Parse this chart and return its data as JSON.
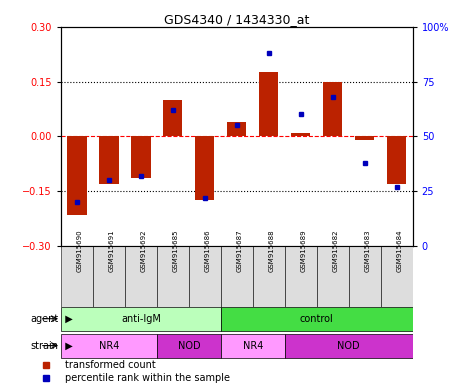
{
  "title": "GDS4340 / 1434330_at",
  "samples": [
    "GSM915690",
    "GSM915691",
    "GSM915692",
    "GSM915685",
    "GSM915686",
    "GSM915687",
    "GSM915688",
    "GSM915689",
    "GSM915682",
    "GSM915683",
    "GSM915684"
  ],
  "red_values": [
    -0.215,
    -0.13,
    -0.115,
    0.1,
    -0.175,
    0.04,
    0.175,
    0.01,
    0.15,
    -0.01,
    -0.13
  ],
  "blue_values": [
    20,
    30,
    32,
    62,
    22,
    55,
    88,
    60,
    68,
    38,
    27
  ],
  "ylim_left": [
    -0.3,
    0.3
  ],
  "ylim_right": [
    0,
    100
  ],
  "yticks_left": [
    -0.3,
    -0.15,
    0,
    0.15,
    0.3
  ],
  "yticks_right": [
    0,
    25,
    50,
    75,
    100
  ],
  "ytick_labels_right": [
    "0",
    "25",
    "50",
    "75",
    "100%"
  ],
  "hlines_dotted": [
    0.15,
    -0.15
  ],
  "bar_color": "#BB2200",
  "dot_color": "#0000BB",
  "agent_groups": [
    {
      "label": "anti-IgM",
      "start": 0,
      "end": 5,
      "color": "#BBFFBB"
    },
    {
      "label": "control",
      "start": 5,
      "end": 11,
      "color": "#44DD44"
    }
  ],
  "strain_groups": [
    {
      "label": "NR4",
      "start": 0,
      "end": 3,
      "color": "#FF99FF"
    },
    {
      "label": "NOD",
      "start": 3,
      "end": 5,
      "color": "#CC33CC"
    },
    {
      "label": "NR4",
      "start": 5,
      "end": 7,
      "color": "#FF99FF"
    },
    {
      "label": "NOD",
      "start": 7,
      "end": 11,
      "color": "#CC33CC"
    }
  ],
  "legend_items": [
    {
      "label": "transformed count",
      "color": "#BB2200"
    },
    {
      "label": "percentile rank within the sample",
      "color": "#0000BB"
    }
  ],
  "bar_width": 0.6,
  "tick_box_color": "#DDDDDD",
  "left_label_color": "#333333",
  "arrow_color": "#555555"
}
